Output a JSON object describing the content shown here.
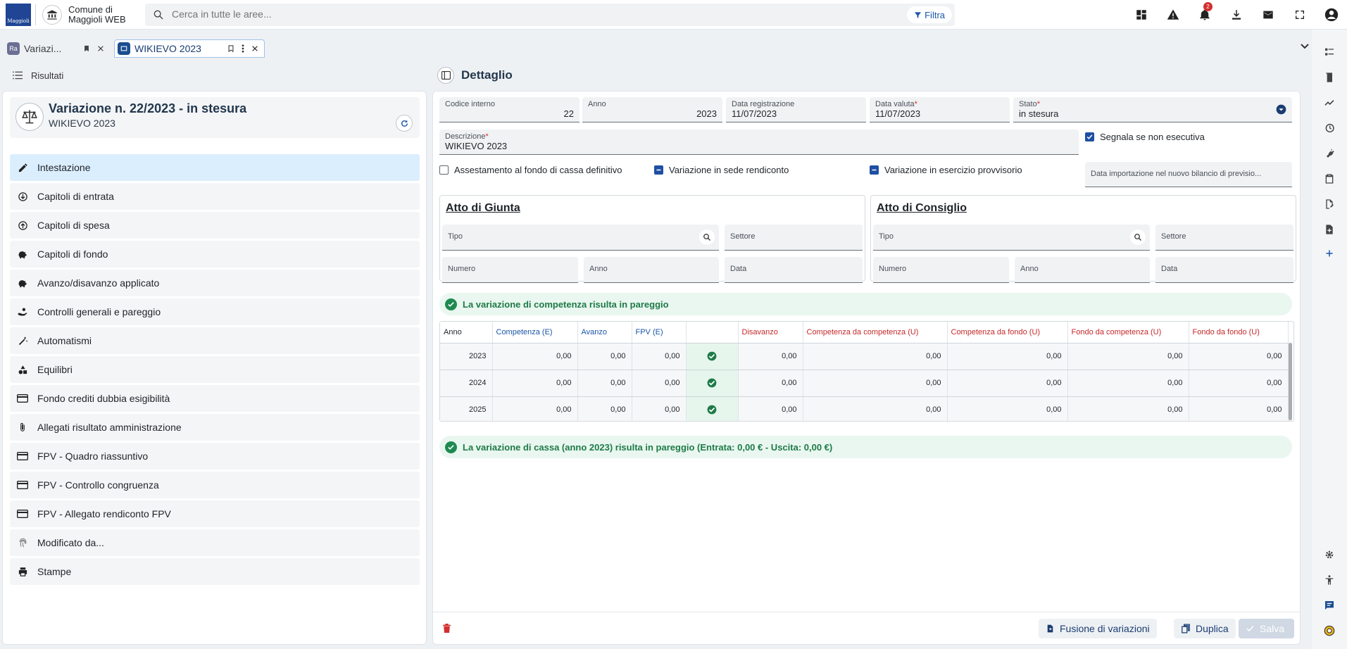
{
  "header": {
    "logo_text": "Maggioli",
    "app_name": "Comune di Maggioli WEB",
    "search_placeholder": "Cerca in tutte le aree...",
    "filter_label": "Filtra",
    "notifications_count": "2"
  },
  "tabs": [
    {
      "label": "Variazi...",
      "badge": "Ra"
    },
    {
      "label": "WIKIEVO 2023"
    }
  ],
  "left": {
    "header_label": "Risultati",
    "card_title": "Variazione n. 22/2023 - in stesura",
    "card_subtitle": "WIKIEVO 2023",
    "menu": [
      {
        "label": "Intestazione",
        "icon": "pencil-icon"
      },
      {
        "label": "Capitoli di entrata",
        "icon": "arrow-down-circle-icon"
      },
      {
        "label": "Capitoli di spesa",
        "icon": "arrow-up-circle-icon"
      },
      {
        "label": "Capitoli di fondo",
        "icon": "piggy-bank-icon"
      },
      {
        "label": "Avanzo/disavanzo applicato",
        "icon": "piggy-bank-icon"
      },
      {
        "label": "Controlli generali e pareggio",
        "icon": "hand-coin-icon"
      },
      {
        "label": "Automatismi",
        "icon": "magic-wand-icon"
      },
      {
        "label": "Equilibri",
        "icon": "shapes-icon"
      },
      {
        "label": "Fondo crediti dubbia esigibilità",
        "icon": "credit-card-icon"
      },
      {
        "label": "Allegati risultato amministrazione",
        "icon": "paperclip-icon"
      },
      {
        "label": "FPV - Quadro riassuntivo",
        "icon": "credit-card-icon"
      },
      {
        "label": "FPV - Controllo congruenza",
        "icon": "credit-card-icon"
      },
      {
        "label": "FPV - Allegato rendiconto FPV",
        "icon": "credit-card-icon"
      },
      {
        "label": "Modificato da...",
        "icon": "fingerprint-icon"
      },
      {
        "label": "Stampe",
        "icon": "printer-icon"
      }
    ]
  },
  "detail": {
    "title": "Dettaglio",
    "fields": {
      "codice_interno": {
        "label": "Codice interno",
        "value": "22"
      },
      "anno": {
        "label": "Anno",
        "value": "2023"
      },
      "data_registrazione": {
        "label": "Data registrazione",
        "value": "11/07/2023"
      },
      "data_valuta": {
        "label": "Data valuta",
        "value": "11/07/2023"
      },
      "stato": {
        "label": "Stato",
        "value": "in stesura"
      },
      "descrizione": {
        "label": "Descrizione",
        "value": "WIKIEVO 2023"
      },
      "data_importazione": {
        "label": "Data importazione nel nuovo bilancio di previsio..."
      }
    },
    "required_mark": "*",
    "checkboxes": {
      "segnala": "Segnala se non esecutiva",
      "assestamento": "Assestamento al fondo di cassa definitivo",
      "sede_rendiconto": "Variazione in sede rendiconto",
      "esercizio_provvisorio": "Variazione in esercizio provvisorio"
    },
    "atto_giunta": {
      "title": "Atto di Giunta",
      "tipo": "Tipo",
      "settore": "Settore",
      "numero": "Numero",
      "anno": "Anno",
      "data": "Data"
    },
    "atto_consiglio": {
      "title": "Atto di Consiglio",
      "tipo": "Tipo",
      "settore": "Settore",
      "numero": "Numero",
      "anno": "Anno",
      "data": "Data"
    },
    "msg_competenza": "La variazione di competenza risulta in pareggio",
    "msg_cassa": "La variazione di cassa (anno 2023) risulta in pareggio (Entrata: 0,00 € - Uscita: 0,00 €)",
    "table": {
      "headers": [
        "Anno",
        "Competenza (E)",
        "Avanzo",
        "FPV (E)",
        "",
        "Disavanzo",
        "Competenza da competenza (U)",
        "Competenza da fondo (U)",
        "Fondo da competenza (U)",
        "Fondo da fondo (U)"
      ],
      "rows": [
        [
          "2023",
          "0,00",
          "0,00",
          "0,00",
          "",
          "0,00",
          "0,00",
          "0,00",
          "0,00",
          "0,00"
        ],
        [
          "2024",
          "0,00",
          "0,00",
          "0,00",
          "",
          "0,00",
          "0,00",
          "0,00",
          "0,00",
          "0,00"
        ],
        [
          "2025",
          "0,00",
          "0,00",
          "0,00",
          "",
          "0,00",
          "0,00",
          "0,00",
          "0,00",
          "0,00"
        ]
      ]
    },
    "footer": {
      "fusione": "Fusione di variazioni",
      "duplica": "Duplica",
      "salva": "Salva"
    }
  }
}
